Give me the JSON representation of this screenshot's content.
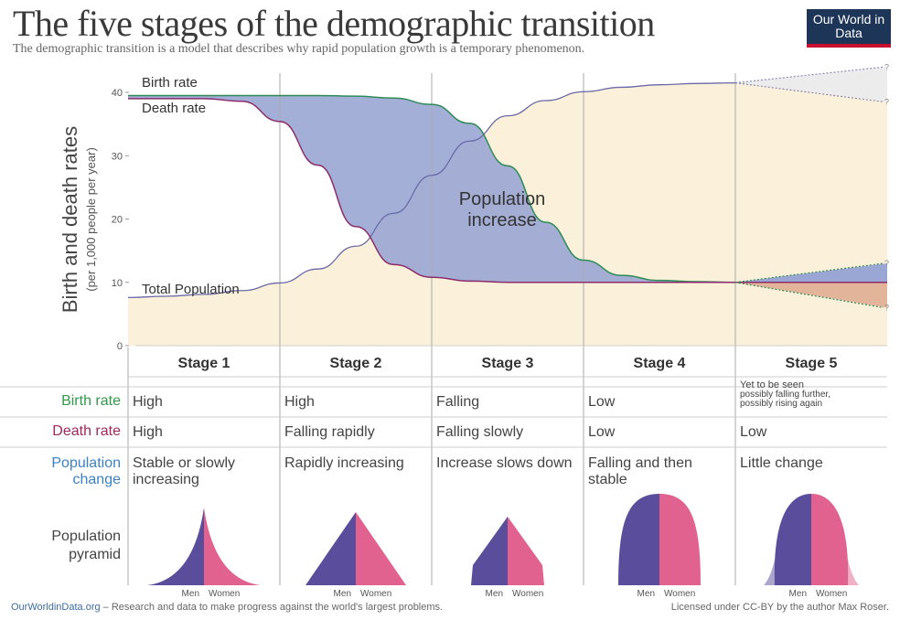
{
  "header": {
    "title": "The five stages of the demographic transition",
    "subtitle": "The demographic transition is a model that describes why rapid population growth is a temporary phenomenon.",
    "logo": "Our World in Data"
  },
  "chart_data": {
    "type": "line",
    "ylabel": "Birth and death rates",
    "ylabel_sub": "(per 1,000 people per year)",
    "ylim": [
      0,
      40
    ],
    "yticks": [
      "0",
      "10",
      "20",
      "30",
      "40"
    ],
    "xlim": [
      0,
      5
    ],
    "x": [
      0,
      0.25,
      0.5,
      0.75,
      1,
      1.25,
      1.5,
      1.75,
      2,
      2.25,
      2.5,
      2.75,
      3,
      3.25,
      3.5,
      3.75,
      4
    ],
    "series": [
      {
        "name": "Birth rate",
        "color": "#2e8b57",
        "values": [
          39.5,
          39.5,
          39.5,
          39.5,
          39.5,
          39.5,
          39.4,
          39.1,
          38.1,
          35.1,
          28.4,
          19.5,
          13.5,
          11.1,
          10.3,
          10.1,
          10
        ]
      },
      {
        "name": "Death rate",
        "color": "#8b2d6b",
        "values": [
          39,
          39,
          39,
          38.6,
          35.4,
          28.5,
          18.8,
          12.8,
          10.8,
          10.2,
          10,
          10,
          10,
          10,
          10,
          10,
          10
        ]
      },
      {
        "name": "Total Population",
        "color": "#6a6aa8",
        "values": [
          7.6,
          7.8,
          8.1,
          8.7,
          9.9,
          12.1,
          15.7,
          20.9,
          26.9,
          32.3,
          36.3,
          38.7,
          40.1,
          40.8,
          41.2,
          41.4,
          41.5
        ]
      }
    ],
    "stage5_projections": {
      "birth_rate_high": 13,
      "birth_rate_low": 6,
      "death_rate": 10,
      "population_high": 44,
      "population_low": 38.5,
      "marker": "?"
    },
    "annotation": "Population increase",
    "colors": {
      "population_fill": "#fbf0da",
      "increase_fill": "#9aa6d4",
      "decrease_fill": "#e2b49a",
      "uncertain_fill": "#ececec"
    }
  },
  "table": {
    "stages": [
      "Stage 1",
      "Stage 2",
      "Stage 3",
      "Stage 4",
      "Stage 5"
    ],
    "row_labels": {
      "birth": "Birth rate",
      "death": "Death rate",
      "pop_change_1": "Population",
      "pop_change_2": "change",
      "pyramid_1": "Population",
      "pyramid_2": "pyramid"
    },
    "birth": [
      "High",
      "High",
      "Falling",
      "Low",
      "Yet to be seen"
    ],
    "birth_stage5_note_1": "possibly falling further,",
    "birth_stage5_note_2": "possibly rising again",
    "death": [
      "High",
      "Falling rapidly",
      "Falling slowly",
      "Low",
      "Low"
    ],
    "pop_change": [
      "Stable or slowly increasing",
      "Rapidly increasing",
      "Increase slows down",
      "Falling and then stable",
      "Little change"
    ],
    "men": "Men",
    "women": "Women",
    "colors": {
      "birth": "#2e9a4a",
      "death": "#a0285f",
      "pop_change": "#3b82c4",
      "men": "#5a4d9c",
      "women": "#e1628e"
    }
  },
  "footer": {
    "site": "OurWorldinData.org",
    "tagline": " – Research and data to make progress against the world's largest problems.",
    "license": "Licensed under CC-BY by the author Max Roser."
  }
}
